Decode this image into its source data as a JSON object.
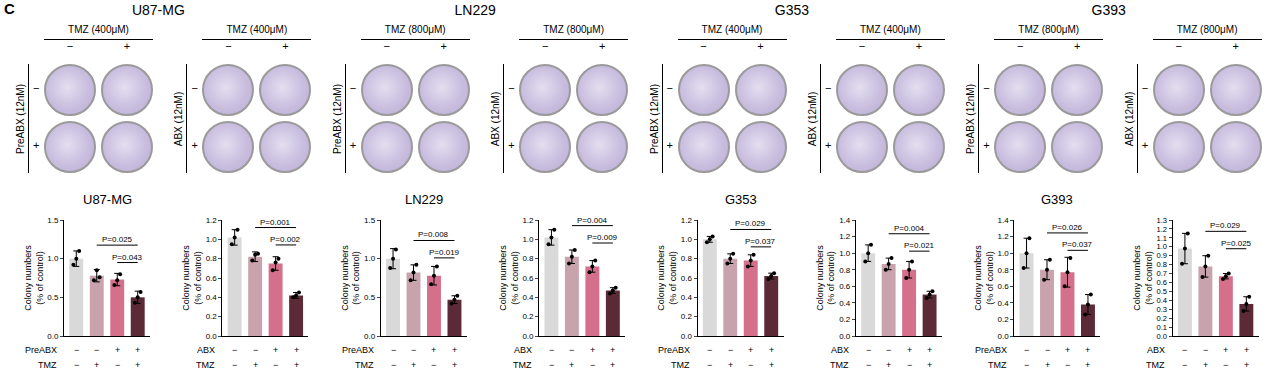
{
  "panel_label": "C",
  "signs": [
    "−",
    "+"
  ],
  "plates": [
    {
      "cell_line": "U87-MG",
      "groups": [
        {
          "drug": "PreABX (12nM)",
          "tmz": "TMZ (400μM)"
        },
        {
          "drug": "ABX (12nM)",
          "tmz": "TMZ (400μM)"
        }
      ]
    },
    {
      "cell_line": "LN229",
      "groups": [
        {
          "drug": "PreABX (12nM)",
          "tmz": "TMZ (800μM)"
        },
        {
          "drug": "ABX (12nM)",
          "tmz": "TMZ (800μM)"
        }
      ]
    },
    {
      "cell_line": "G353",
      "groups": [
        {
          "drug": "PreABX (12nM)",
          "tmz": "TMZ (400μM)"
        },
        {
          "drug": "ABX (12nM)",
          "tmz": "TMZ (400μM)"
        }
      ]
    },
    {
      "cell_line": "G393",
      "groups": [
        {
          "drug": "PreABX (12nM)",
          "tmz": "TMZ (800μM)"
        },
        {
          "drug": "ABX (12nM)",
          "tmz": "TMZ (800μM)"
        }
      ]
    }
  ],
  "chart_data": [
    {
      "type": "bar",
      "title": "U87-MG",
      "ylabel": [
        "Colony numbers",
        "(% of control)"
      ],
      "categories": [
        null,
        null,
        null,
        null
      ],
      "values": [
        1.0,
        0.78,
        0.73,
        0.5
      ],
      "errors": [
        0.1,
        0.08,
        0.08,
        0.08
      ],
      "points": [
        [
          0.92,
          1.0,
          1.1
        ],
        [
          0.72,
          0.85,
          0.76
        ],
        [
          0.66,
          0.72,
          0.8
        ],
        [
          0.43,
          0.5,
          0.57
        ]
      ],
      "colors": [
        "#d9d9d9",
        "#c8a3ad",
        "#d4708b",
        "#5b2a36"
      ],
      "ylim": [
        0,
        1.5
      ],
      "yticks": [
        {
          "value": 0,
          "label": "0.0"
        },
        {
          "value": 0.5,
          "label": "0.5"
        },
        {
          "value": 1,
          "label": "1.0"
        },
        {
          "value": 1.5,
          "label": "1.5"
        }
      ],
      "condition_rows": [
        {
          "label": "PreABX",
          "marks": [
            "−",
            "−",
            "+",
            "+"
          ]
        },
        {
          "label": "TMZ",
          "marks": [
            "−",
            "+",
            "−",
            "+"
          ]
        }
      ],
      "comparisons": [
        {
          "from": 1,
          "to": 3,
          "label": "P=0.025"
        },
        {
          "from": 2,
          "to": 3,
          "label": "P=0.043"
        }
      ]
    },
    {
      "type": "bar",
      "ylabel": [
        "Colony numbers",
        "(% of control)"
      ],
      "categories": [
        null,
        null,
        null,
        null
      ],
      "values": [
        1.02,
        0.82,
        0.75,
        0.42
      ],
      "errors": [
        0.08,
        0.05,
        0.07,
        0.03
      ],
      "points": [
        [
          0.95,
          1.02,
          1.1
        ],
        [
          0.78,
          0.84,
          0.85
        ],
        [
          0.68,
          0.76,
          0.8
        ],
        [
          0.4,
          0.42,
          0.45
        ]
      ],
      "colors": [
        "#d9d9d9",
        "#c8a3ad",
        "#d4708b",
        "#5b2a36"
      ],
      "ylim": [
        0,
        1.2
      ],
      "yticks": [
        {
          "value": 0,
          "label": "0.0"
        },
        {
          "value": 0.2,
          "label": "0.2"
        },
        {
          "value": 0.4,
          "label": "0.4"
        },
        {
          "value": 0.6,
          "label": "0.6"
        },
        {
          "value": 0.8,
          "label": "0.8"
        },
        {
          "value": 1,
          "label": "1.0"
        },
        {
          "value": 1.2,
          "label": "1.2"
        }
      ],
      "condition_rows": [
        {
          "label": "ABX",
          "marks": [
            "−",
            "−",
            "+",
            "+"
          ]
        },
        {
          "label": "TMZ",
          "marks": [
            "−",
            "+",
            "−",
            "+"
          ]
        }
      ],
      "comparisons": [
        {
          "from": 1,
          "to": 3,
          "label": "P=0.001"
        },
        {
          "from": 2,
          "to": 3,
          "label": "P=0.002"
        }
      ]
    },
    {
      "type": "bar",
      "title": "LN229",
      "ylabel": [
        "Colony numbers",
        "(% of control)"
      ],
      "categories": [
        null,
        null,
        null,
        null
      ],
      "values": [
        1.0,
        0.82,
        0.78,
        0.47
      ],
      "errors": [
        0.13,
        0.1,
        0.12,
        0.05
      ],
      "points": [
        [
          0.88,
          1.0,
          1.12
        ],
        [
          0.72,
          0.82,
          0.92
        ],
        [
          0.67,
          0.78,
          0.9
        ],
        [
          0.42,
          0.47,
          0.52
        ]
      ],
      "colors": [
        "#d9d9d9",
        "#c8a3ad",
        "#d4708b",
        "#5b2a36"
      ],
      "ylim": [
        0,
        1.5
      ],
      "yticks": [
        {
          "value": 0,
          "label": "0.0"
        },
        {
          "value": 0.5,
          "label": "0.5"
        },
        {
          "value": 1,
          "label": "1.0"
        },
        {
          "value": 1.5,
          "label": "1.5"
        }
      ],
      "condition_rows": [
        {
          "label": "PreABX",
          "marks": [
            "−",
            "−",
            "+",
            "+"
          ]
        },
        {
          "label": "TMZ",
          "marks": [
            "−",
            "+",
            "−",
            "+"
          ]
        }
      ],
      "comparisons": [
        {
          "from": 1,
          "to": 3,
          "label": "P=0.008"
        },
        {
          "from": 2,
          "to": 3,
          "label": "P=0.019"
        }
      ]
    },
    {
      "type": "bar",
      "ylabel": [
        "Colony numbers",
        "(% of control)"
      ],
      "categories": [
        null,
        null,
        null,
        null
      ],
      "values": [
        1.02,
        0.82,
        0.72,
        0.47
      ],
      "errors": [
        0.08,
        0.07,
        0.06,
        0.03
      ],
      "points": [
        [
          0.95,
          1.02,
          1.1
        ],
        [
          0.75,
          0.82,
          0.89
        ],
        [
          0.66,
          0.72,
          0.78
        ],
        [
          0.44,
          0.47,
          0.5
        ]
      ],
      "colors": [
        "#d9d9d9",
        "#c8a3ad",
        "#d4708b",
        "#5b2a36"
      ],
      "ylim": [
        0,
        1.2
      ],
      "yticks": [
        {
          "value": 0,
          "label": "0.0"
        },
        {
          "value": 0.2,
          "label": "0.2"
        },
        {
          "value": 0.4,
          "label": "0.4"
        },
        {
          "value": 0.6,
          "label": "0.6"
        },
        {
          "value": 0.8,
          "label": "0.8"
        },
        {
          "value": 1,
          "label": "1.0"
        },
        {
          "value": 1.2,
          "label": "1.2"
        }
      ],
      "condition_rows": [
        {
          "label": "ABX",
          "marks": [
            "−",
            "−",
            "+",
            "+"
          ]
        },
        {
          "label": "TMZ",
          "marks": [
            "−",
            "+",
            "−",
            "+"
          ]
        }
      ],
      "comparisons": [
        {
          "from": 1,
          "to": 3,
          "label": "P=0.004"
        },
        {
          "from": 2,
          "to": 3,
          "label": "P=0.009"
        }
      ]
    },
    {
      "type": "bar",
      "title": "G353",
      "ylabel": [
        "Colony numbers",
        "(% of control)"
      ],
      "categories": [
        null,
        null,
        null,
        null
      ],
      "values": [
        1.0,
        0.8,
        0.78,
        0.62
      ],
      "errors": [
        0.03,
        0.05,
        0.06,
        0.03
      ],
      "points": [
        [
          0.97,
          1.0,
          1.03
        ],
        [
          0.75,
          0.8,
          0.85
        ],
        [
          0.72,
          0.78,
          0.84
        ],
        [
          0.59,
          0.62,
          0.65
        ]
      ],
      "colors": [
        "#d9d9d9",
        "#c8a3ad",
        "#d4708b",
        "#5b2a36"
      ],
      "ylim": [
        0,
        1.2
      ],
      "yticks": [
        {
          "value": 0,
          "label": "0.0"
        },
        {
          "value": 0.2,
          "label": "0.2"
        },
        {
          "value": 0.4,
          "label": "0.4"
        },
        {
          "value": 0.6,
          "label": "0.6"
        },
        {
          "value": 0.8,
          "label": "0.8"
        },
        {
          "value": 1,
          "label": "1.0"
        },
        {
          "value": 1.2,
          "label": "1.2"
        }
      ],
      "condition_rows": [
        {
          "label": "PreABX",
          "marks": [
            "−",
            "−",
            "+",
            "+"
          ]
        },
        {
          "label": "TMZ",
          "marks": [
            "−",
            "+",
            "−",
            "+"
          ]
        }
      ],
      "comparisons": [
        {
          "from": 1,
          "to": 3,
          "label": "P=0.029"
        },
        {
          "from": 2,
          "to": 3,
          "label": "P=0.037"
        }
      ]
    },
    {
      "type": "bar",
      "ylabel": [
        "Colony numbers",
        "(% of control)"
      ],
      "categories": [
        null,
        null,
        null,
        null
      ],
      "values": [
        1.0,
        0.87,
        0.8,
        0.5
      ],
      "errors": [
        0.1,
        0.07,
        0.1,
        0.04
      ],
      "points": [
        [
          0.9,
          1.0,
          1.1
        ],
        [
          0.8,
          0.87,
          0.94
        ],
        [
          0.7,
          0.8,
          0.9
        ],
        [
          0.46,
          0.5,
          0.54
        ]
      ],
      "colors": [
        "#d9d9d9",
        "#c8a3ad",
        "#d4708b",
        "#5b2a36"
      ],
      "ylim": [
        0,
        1.4
      ],
      "yticks": [
        {
          "value": 0,
          "label": "0.0"
        },
        {
          "value": 0.2,
          "label": "0.2"
        },
        {
          "value": 0.4,
          "label": "0.4"
        },
        {
          "value": 0.6,
          "label": "0.6"
        },
        {
          "value": 0.8,
          "label": "0.8"
        },
        {
          "value": 1,
          "label": "1.0"
        },
        {
          "value": 1.2,
          "label": "1.2"
        },
        {
          "value": 1.4,
          "label": "1.4"
        }
      ],
      "condition_rows": [
        {
          "label": "ABX",
          "marks": [
            "−",
            "−",
            "+",
            "+"
          ]
        },
        {
          "label": "TMZ",
          "marks": [
            "−",
            "+",
            "−",
            "+"
          ]
        }
      ],
      "comparisons": [
        {
          "from": 1,
          "to": 3,
          "label": "P=0.004"
        },
        {
          "from": 2,
          "to": 3,
          "label": "P=0.021"
        }
      ]
    },
    {
      "type": "bar",
      "title": "G393",
      "ylabel": [
        "Colony numbers",
        "(% of control)"
      ],
      "categories": [
        null,
        null,
        null,
        null
      ],
      "values": [
        1.0,
        0.8,
        0.77,
        0.38
      ],
      "errors": [
        0.18,
        0.12,
        0.18,
        0.12
      ],
      "points": [
        [
          0.82,
          1.0,
          1.18
        ],
        [
          0.68,
          0.8,
          0.92
        ],
        [
          0.6,
          0.77,
          0.94
        ],
        [
          0.26,
          0.38,
          0.5
        ]
      ],
      "colors": [
        "#d9d9d9",
        "#c8a3ad",
        "#d4708b",
        "#5b2a36"
      ],
      "ylim": [
        0,
        1.4
      ],
      "yticks": [
        {
          "value": 0,
          "label": "0.0"
        },
        {
          "value": 0.2,
          "label": "0.2"
        },
        {
          "value": 0.4,
          "label": "0.4"
        },
        {
          "value": 0.6,
          "label": "0.6"
        },
        {
          "value": 0.8,
          "label": "0.8"
        },
        {
          "value": 1,
          "label": "1.0"
        },
        {
          "value": 1.2,
          "label": "1.2"
        },
        {
          "value": 1.4,
          "label": "1.4"
        }
      ],
      "condition_rows": [
        {
          "label": "PreABX",
          "marks": [
            "−",
            "−",
            "+",
            "+"
          ]
        },
        {
          "label": "TMZ",
          "marks": [
            "−",
            "+",
            "−",
            "+"
          ]
        }
      ],
      "comparisons": [
        {
          "from": 1,
          "to": 3,
          "label": "P=0.026"
        },
        {
          "from": 2,
          "to": 3,
          "label": "P=0.037"
        }
      ]
    },
    {
      "type": "bar",
      "ylabel": [
        "Colony numbers",
        "(% of control)"
      ],
      "categories": [
        null,
        null,
        null,
        null
      ],
      "values": [
        0.98,
        0.78,
        0.67,
        0.36
      ],
      "errors": [
        0.17,
        0.12,
        0.03,
        0.08
      ],
      "points": [
        [
          0.81,
          0.98,
          1.15
        ],
        [
          0.66,
          0.78,
          0.9
        ],
        [
          0.64,
          0.67,
          0.7
        ],
        [
          0.28,
          0.36,
          0.44
        ]
      ],
      "colors": [
        "#d9d9d9",
        "#c8a3ad",
        "#d4708b",
        "#5b2a36"
      ],
      "ylim": [
        0,
        1.3
      ],
      "yticks": [
        {
          "value": 0,
          "label": "0.0"
        },
        {
          "value": 0.1,
          "label": "0.1"
        },
        {
          "value": 0.2,
          "label": "0.2"
        },
        {
          "value": 0.3,
          "label": "0.3"
        },
        {
          "value": 0.4,
          "label": "0.4"
        },
        {
          "value": 0.5,
          "label": "0.5"
        },
        {
          "value": 0.6,
          "label": "0.6"
        },
        {
          "value": 0.7,
          "label": "0.7"
        },
        {
          "value": 0.8,
          "label": "0.8"
        },
        {
          "value": 0.9,
          "label": "0.9"
        },
        {
          "value": 1,
          "label": "1.0"
        },
        {
          "value": 1.1,
          "label": "1.1"
        },
        {
          "value": 1.2,
          "label": "1.2"
        },
        {
          "value": 1.3,
          "label": "1.3"
        }
      ],
      "condition_rows": [
        {
          "label": "ABX",
          "marks": [
            "−",
            "−",
            "+",
            "+"
          ]
        },
        {
          "label": "TMZ",
          "marks": [
            "−",
            "+",
            "−",
            "+"
          ]
        }
      ],
      "comparisons": [
        {
          "from": 1,
          "to": 3,
          "label": "P=0.029"
        },
        {
          "from": 2,
          "to": 3,
          "label": "P=0.025"
        }
      ]
    }
  ]
}
